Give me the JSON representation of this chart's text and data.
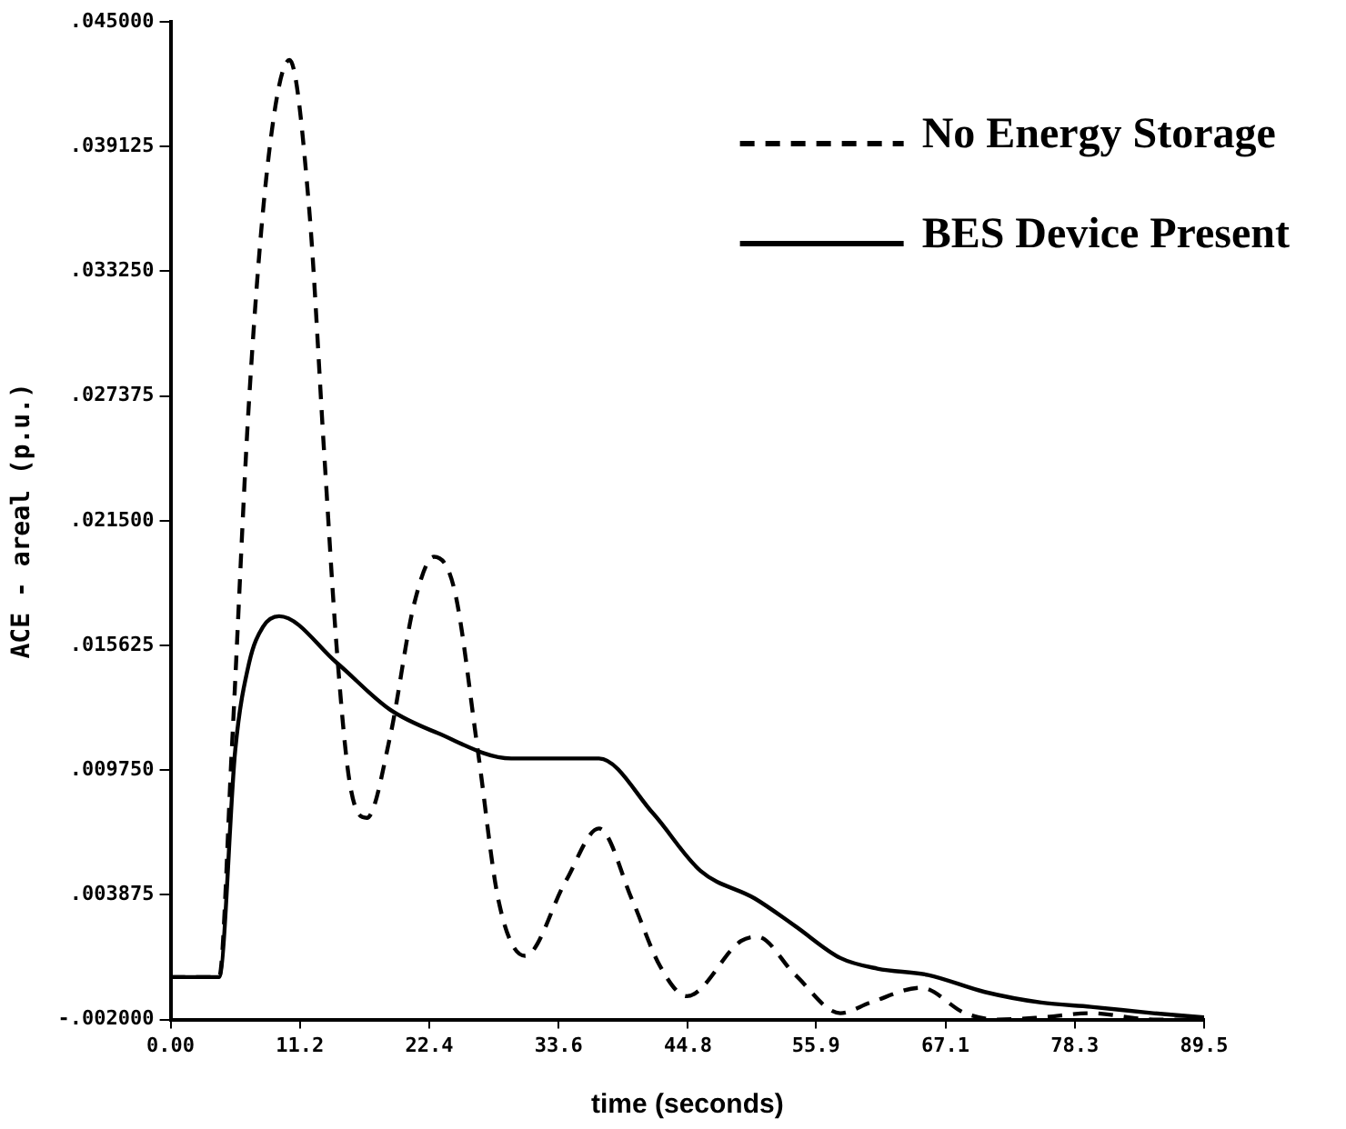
{
  "chart_data": {
    "type": "line",
    "xlabel": "time (seconds)",
    "ylabel": "ACE - areal (p.u.)",
    "xlim": [
      0,
      89.5
    ],
    "ylim": [
      -0.002,
      0.045
    ],
    "xticks": [
      {
        "value": 0,
        "label": "0.00"
      },
      11.2,
      22.4,
      33.6,
      44.8,
      55.9,
      67.1,
      78.3,
      89.5
    ],
    "yticks": [
      {
        "value": -0.002,
        "label": "-.002000"
      },
      {
        "value": 0.003875,
        "label": ".003875"
      },
      {
        "value": 0.00975,
        "label": ".009750"
      },
      {
        "value": 0.015625,
        "label": ".015625"
      },
      {
        "value": 0.0215,
        "label": ".021500"
      },
      {
        "value": 0.027375,
        "label": ".027375"
      },
      {
        "value": 0.03325,
        "label": ".033250"
      },
      {
        "value": 0.039125,
        "label": ".039125"
      },
      {
        "value": 0.045,
        "label": ".045000"
      }
    ],
    "grid": false,
    "legend": "top right",
    "marker": "none",
    "series": [
      {
        "name": "No Energy Storage",
        "color": "#000000",
        "line_style": "dashed",
        "x": [
          0,
          4.2,
          5.3,
          6.8,
          8.5,
          10.3,
          12.0,
          13.3,
          14.4,
          15.5,
          17.0,
          19.0,
          21.1,
          22.8,
          24.6,
          26.6,
          28.4,
          30.7,
          34.2,
          37.1,
          40.0,
          42.4,
          44.7,
          49.4,
          50.8,
          54.1,
          58.0,
          60.6,
          65.0,
          68.8,
          71.6,
          75.4,
          79.7,
          85.1,
          89.5
        ],
        "values": [
          0,
          0,
          0.0107,
          0.0272,
          0.0387,
          0.0432,
          0.0362,
          0.0247,
          0.0154,
          0.0092,
          0.0075,
          0.0113,
          0.0176,
          0.0198,
          0.0182,
          0.0107,
          0.0036,
          0.001,
          0.0045,
          0.007,
          0.0036,
          0.0005,
          -0.0009,
          0.0017,
          0.0019,
          0.0001,
          -0.0017,
          -0.0012,
          -0.0005,
          -0.0017,
          -0.002,
          -0.0019,
          -0.0017,
          -0.002,
          -0.002
        ]
      },
      {
        "name": "BES Device Present",
        "color": "#000000",
        "line_style": "solid",
        "x": [
          0,
          4.2,
          5.6,
          6.8,
          8.0,
          9.4,
          14.4,
          19.0,
          23.1,
          29.5,
          37.1,
          41.8,
          45.9,
          50.6,
          54.1,
          58.0,
          61.2,
          65.6,
          70.5,
          75.4,
          79.7,
          85.1,
          89.5
        ],
        "values": [
          0,
          0,
          0.0107,
          0.0148,
          0.0165,
          0.017,
          0.0148,
          0.0126,
          0.0115,
          0.0103,
          0.0103,
          0.0077,
          0.005,
          0.0037,
          0.0024,
          0.0009,
          0.0004,
          0.0001,
          -0.0007,
          -0.0012,
          -0.0014,
          -0.0017,
          -0.0019
        ]
      }
    ]
  }
}
